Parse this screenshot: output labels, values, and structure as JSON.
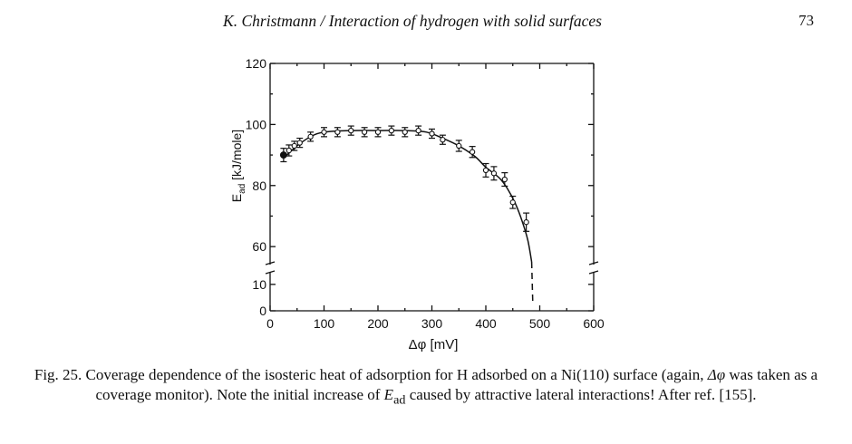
{
  "page": {
    "running_title": "K. Christmann / Interaction of hydrogen with solid surfaces",
    "page_number": "73"
  },
  "chart_data": {
    "type": "scatter",
    "title": "",
    "xlabel": "Δφ [mV]",
    "ylabel_main": "E",
    "ylabel_sub": "ad",
    "ylabel_rest": " [kJ/mole]",
    "x_ticks": [
      0,
      100,
      200,
      300,
      400,
      500,
      600
    ],
    "y_ticks_upper": [
      60,
      80,
      100,
      120
    ],
    "y_ticks_lower": [
      0,
      10
    ],
    "xlim": [
      0,
      600
    ],
    "ylim_upper": [
      55,
      120
    ],
    "ylim_lower": [
      0,
      12
    ],
    "axis_break": "between 10 and 55 kJ/mole",
    "grid": false,
    "points": [
      {
        "x": 25,
        "y": 90,
        "err": 2.2
      },
      {
        "x": 35,
        "y": 91.5,
        "err": 1.8
      },
      {
        "x": 45,
        "y": 93,
        "err": 1.5
      },
      {
        "x": 55,
        "y": 94,
        "err": 1.5
      },
      {
        "x": 75,
        "y": 96,
        "err": 1.5
      },
      {
        "x": 100,
        "y": 97.5,
        "err": 1.5
      },
      {
        "x": 125,
        "y": 97.5,
        "err": 1.5
      },
      {
        "x": 150,
        "y": 98,
        "err": 1.5
      },
      {
        "x": 175,
        "y": 97.5,
        "err": 1.5
      },
      {
        "x": 200,
        "y": 97.5,
        "err": 1.5
      },
      {
        "x": 225,
        "y": 98,
        "err": 1.5
      },
      {
        "x": 250,
        "y": 97.5,
        "err": 1.5
      },
      {
        "x": 275,
        "y": 98,
        "err": 1.5
      },
      {
        "x": 300,
        "y": 97,
        "err": 1.5
      },
      {
        "x": 320,
        "y": 95,
        "err": 1.5
      },
      {
        "x": 350,
        "y": 93,
        "err": 1.8
      },
      {
        "x": 375,
        "y": 91,
        "err": 1.8
      },
      {
        "x": 400,
        "y": 85,
        "err": 2.2
      },
      {
        "x": 415,
        "y": 84,
        "err": 2.2
      },
      {
        "x": 435,
        "y": 82,
        "err": 2.2
      },
      {
        "x": 450,
        "y": 74.5,
        "err": 2
      },
      {
        "x": 475,
        "y": 68,
        "err": 3
      }
    ],
    "curve": [
      [
        25,
        89
      ],
      [
        50,
        93
      ],
      [
        75,
        96
      ],
      [
        100,
        97.5
      ],
      [
        150,
        98
      ],
      [
        200,
        98
      ],
      [
        250,
        98
      ],
      [
        290,
        97.5
      ],
      [
        320,
        95.5
      ],
      [
        350,
        93
      ],
      [
        380,
        89.5
      ],
      [
        400,
        86
      ],
      [
        425,
        82.5
      ],
      [
        440,
        79
      ],
      [
        455,
        74
      ],
      [
        468,
        68
      ],
      [
        478,
        62
      ],
      [
        485,
        55
      ]
    ],
    "curve_dashed": [
      [
        485,
        55
      ],
      [
        487,
        3.5
      ]
    ]
  },
  "caption": {
    "text_part1": "Fig. 25. Coverage dependence of the isosteric heat of adsorption for H adsorbed on a Ni(110) surface (again, ",
    "symbol": "Δφ",
    "text_part2": " was taken as a coverage monitor). Note the initial increase of ",
    "e_symbol": "E",
    "e_sub": "ad",
    "text_part3": " caused by attractive lateral interactions! After ref. [155]."
  }
}
